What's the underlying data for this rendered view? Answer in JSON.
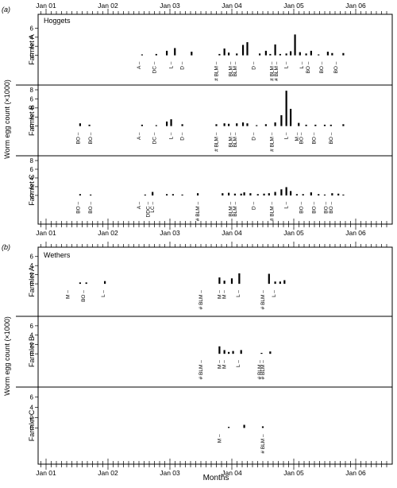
{
  "figure": {
    "ylabel": "Worm egg count (×1000)",
    "xlabel": "Months",
    "month_ticks": [
      "Jan 01",
      "Jan 02",
      "Jan 03",
      "Jan 04",
      "Jan 05",
      "Jan 06"
    ]
  },
  "chart_data": [
    {
      "type": "bar",
      "panel_label": "(a)",
      "group": "Hoggets",
      "x_axis": "months since Jan 01",
      "x_range": [
        -0.3,
        5.9
      ],
      "facets": [
        {
          "name": "Farmlet A",
          "ylim": [
            0,
            8
          ],
          "yticks": [
            0,
            2,
            4,
            6
          ],
          "values": [
            [
              1.55,
              0.2
            ],
            [
              1.78,
              0.3
            ],
            [
              1.95,
              1.0
            ],
            [
              2.08,
              1.6
            ],
            [
              2.35,
              0.8
            ],
            [
              2.8,
              0.3
            ],
            [
              2.88,
              1.5
            ],
            [
              2.95,
              0.6
            ],
            [
              3.08,
              0.4
            ],
            [
              3.18,
              2.3
            ],
            [
              3.25,
              2.9
            ],
            [
              3.45,
              0.4
            ],
            [
              3.55,
              1.0
            ],
            [
              3.62,
              0.3
            ],
            [
              3.7,
              2.4
            ],
            [
              3.78,
              0.3
            ],
            [
              3.88,
              0.4
            ],
            [
              3.95,
              0.9
            ],
            [
              4.02,
              4.6
            ],
            [
              4.1,
              0.7
            ],
            [
              4.2,
              0.4
            ],
            [
              4.28,
              1.0
            ],
            [
              4.4,
              0.2
            ],
            [
              4.55,
              0.8
            ],
            [
              4.62,
              0.5
            ],
            [
              4.8,
              0.5
            ]
          ],
          "labels": [
            [
              "A",
              1.5
            ],
            [
              "DC",
              1.75
            ],
            [
              "L",
              2.02
            ],
            [
              "D",
              2.2
            ],
            [
              "# BLM",
              2.75
            ],
            [
              "BLM",
              2.98
            ],
            [
              "BLM",
              3.05
            ],
            [
              "D",
              3.35
            ],
            [
              "# BLM",
              3.65
            ],
            [
              "# BLM",
              3.72
            ],
            [
              "L",
              3.88
            ],
            [
              "L",
              4.13
            ],
            [
              "BO",
              4.23
            ],
            [
              "BO",
              4.45
            ],
            [
              "BO",
              4.68
            ]
          ]
        },
        {
          "name": "Farmlet B",
          "ylim": [
            0,
            8
          ],
          "yticks": [
            0,
            2,
            4,
            6,
            8
          ],
          "values": [
            [
              0.55,
              0.6
            ],
            [
              0.7,
              0.3
            ],
            [
              1.55,
              0.3
            ],
            [
              1.78,
              0.2
            ],
            [
              1.95,
              1.0
            ],
            [
              2.02,
              1.5
            ],
            [
              2.2,
              0.4
            ],
            [
              2.75,
              0.4
            ],
            [
              2.88,
              0.6
            ],
            [
              2.95,
              0.5
            ],
            [
              3.08,
              0.6
            ],
            [
              3.18,
              0.8
            ],
            [
              3.25,
              0.6
            ],
            [
              3.4,
              0.2
            ],
            [
              3.55,
              0.4
            ],
            [
              3.7,
              0.8
            ],
            [
              3.8,
              2.4
            ],
            [
              3.88,
              7.8
            ],
            [
              3.95,
              3.8
            ],
            [
              4.08,
              0.7
            ],
            [
              4.2,
              0.3
            ],
            [
              4.35,
              0.3
            ],
            [
              4.5,
              0.3
            ],
            [
              4.6,
              0.3
            ],
            [
              4.8,
              0.4
            ]
          ],
          "labels": [
            [
              "BO",
              0.52
            ],
            [
              "BO",
              0.72
            ],
            [
              "A",
              1.5
            ],
            [
              "DC",
              1.75
            ],
            [
              "L",
              2.02
            ],
            [
              "D",
              2.2
            ],
            [
              "# BLM",
              2.75
            ],
            [
              "BLM",
              2.98
            ],
            [
              "BLM",
              3.05
            ],
            [
              "D",
              3.35
            ],
            [
              "# BLM",
              3.65
            ],
            [
              "L",
              3.88
            ],
            [
              "M",
              4.05
            ],
            [
              "BO",
              4.12
            ],
            [
              "BO",
              4.33
            ],
            [
              "BO",
              4.6
            ]
          ]
        },
        {
          "name": "Farmlet C",
          "ylim": [
            0,
            8
          ],
          "yticks": [
            0,
            2,
            4,
            6,
            8
          ],
          "values": [
            [
              0.55,
              0.3
            ],
            [
              0.72,
              0.2
            ],
            [
              1.6,
              0.2
            ],
            [
              1.72,
              0.8
            ],
            [
              1.95,
              0.3
            ],
            [
              2.05,
              0.3
            ],
            [
              2.2,
              0.2
            ],
            [
              2.45,
              0.5
            ],
            [
              2.85,
              0.5
            ],
            [
              2.95,
              0.6
            ],
            [
              3.05,
              0.4
            ],
            [
              3.15,
              0.4
            ],
            [
              3.2,
              0.7
            ],
            [
              3.3,
              0.5
            ],
            [
              3.42,
              0.3
            ],
            [
              3.52,
              0.4
            ],
            [
              3.6,
              0.5
            ],
            [
              3.7,
              0.8
            ],
            [
              3.8,
              1.4
            ],
            [
              3.88,
              1.9
            ],
            [
              3.95,
              1.0
            ],
            [
              4.05,
              0.3
            ],
            [
              4.15,
              0.3
            ],
            [
              4.28,
              0.7
            ],
            [
              4.4,
              0.3
            ],
            [
              4.5,
              0.2
            ],
            [
              4.62,
              0.5
            ],
            [
              4.72,
              0.4
            ],
            [
              4.8,
              0.2
            ]
          ],
          "labels": [
            [
              "BO",
              0.52
            ],
            [
              "BO",
              0.72
            ],
            [
              "A",
              1.5
            ],
            [
              "DDC",
              1.65
            ],
            [
              "LC",
              1.72
            ],
            [
              "# BLM",
              2.45
            ],
            [
              "BLM",
              2.98
            ],
            [
              "BLM",
              3.05
            ],
            [
              "D",
              3.35
            ],
            [
              "# BLM",
              3.65
            ],
            [
              "L",
              3.88
            ],
            [
              "BO",
              4.12
            ],
            [
              "BO",
              4.33
            ],
            [
              "BO",
              4.52
            ],
            [
              "BO",
              4.6
            ]
          ]
        }
      ]
    },
    {
      "type": "bar",
      "panel_label": "(b)",
      "group": "Wethers",
      "x_axis": "months since Jan 01",
      "x_range": [
        -0.3,
        5.9
      ],
      "facets": [
        {
          "name": "Farmlet A",
          "ylim": [
            0,
            7
          ],
          "yticks": [
            0,
            2,
            4,
            6
          ],
          "values": [
            [
              0.55,
              0.3
            ],
            [
              0.65,
              0.3
            ],
            [
              0.95,
              0.6
            ],
            [
              2.8,
              1.4
            ],
            [
              2.88,
              0.7
            ],
            [
              3.0,
              1.2
            ],
            [
              3.12,
              2.3
            ],
            [
              3.6,
              2.2
            ],
            [
              3.7,
              0.5
            ],
            [
              3.78,
              0.5
            ],
            [
              3.85,
              0.8
            ]
          ],
          "labels": [
            [
              "M",
              0.35
            ],
            [
              "BO",
              0.6
            ],
            [
              "L",
              0.92
            ],
            [
              "# BLM",
              2.5
            ],
            [
              "M",
              2.8
            ],
            [
              "M",
              2.88
            ],
            [
              "L",
              3.1
            ],
            [
              "# BLM",
              3.5
            ],
            [
              "L",
              3.68
            ]
          ]
        },
        {
          "name": "Farmlet B",
          "ylim": [
            0,
            7
          ],
          "yticks": [
            0,
            2,
            4,
            6
          ],
          "values": [
            [
              2.8,
              1.6
            ],
            [
              2.88,
              0.8
            ],
            [
              2.95,
              0.4
            ],
            [
              3.02,
              0.6
            ],
            [
              3.15,
              0.8
            ],
            [
              3.48,
              0.2
            ],
            [
              3.62,
              0.5
            ]
          ],
          "labels": [
            [
              "# BLM",
              2.5
            ],
            [
              "M",
              2.8
            ],
            [
              "M",
              2.88
            ],
            [
              "L",
              3.1
            ],
            [
              "# BLM",
              3.45
            ],
            [
              "# BLM",
              3.5
            ]
          ]
        },
        {
          "name": "Farmlet C",
          "ylim": [
            0,
            7
          ],
          "yticks": [
            0,
            2,
            4,
            6
          ],
          "values": [
            [
              2.95,
              0.2
            ],
            [
              3.2,
              0.6
            ],
            [
              3.5,
              0.3
            ]
          ],
          "labels": [
            [
              "M",
              2.8
            ],
            [
              "# BLM",
              3.5
            ]
          ]
        }
      ]
    }
  ]
}
